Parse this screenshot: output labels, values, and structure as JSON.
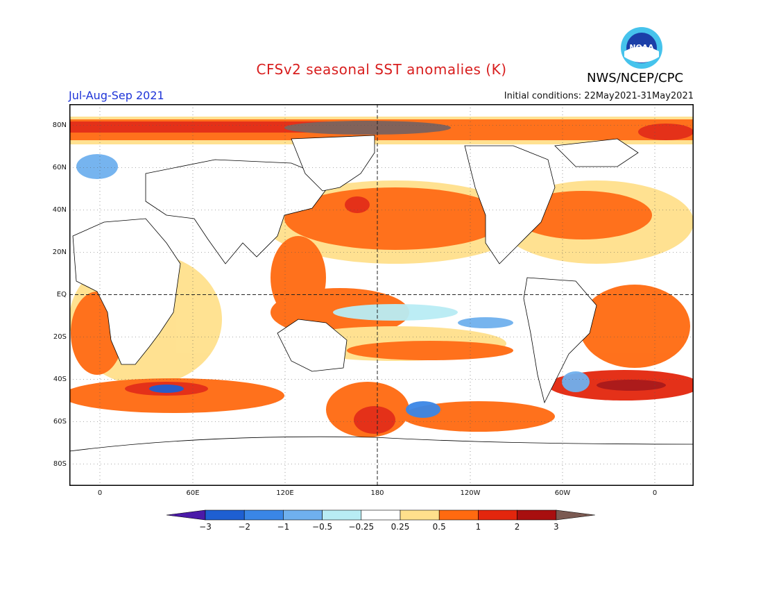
{
  "header": {
    "title": "CFSv2 seasonal SST anomalies (K)",
    "season": "Jul-Aug-Sep 2021",
    "initial_conditions": "Initial conditions: 22May2021-31May2021",
    "agency": "NWS/NCEP/CPC",
    "logo_text": "NOAA"
  },
  "map": {
    "latitude_labels": [
      "80N",
      "60N",
      "40N",
      "20N",
      "EQ",
      "20S",
      "40S",
      "60S",
      "80S"
    ],
    "longitude_labels": [
      "0",
      "60E",
      "120E",
      "180",
      "120W",
      "60W",
      "0"
    ],
    "reference_lines": [
      "equator",
      "dateline"
    ],
    "grid": "dotted"
  },
  "colorbar": {
    "units": "K",
    "tick_labels": [
      "-3",
      "-2",
      "-1",
      "-0.5",
      "-0.25",
      "0.25",
      "0.5",
      "1",
      "2",
      "3"
    ],
    "colors": [
      "#4b1aa8",
      "#1e5fd2",
      "#3a86e6",
      "#6fb0ee",
      "#b8ecf4",
      "#ffffff",
      "#ffe08c",
      "#ff6a10",
      "#e3260d",
      "#a80f0f",
      "#7b5a52"
    ]
  },
  "colors": {
    "title": "#d81e1e",
    "season": "#1e34d8",
    "land": "#ffffff"
  }
}
